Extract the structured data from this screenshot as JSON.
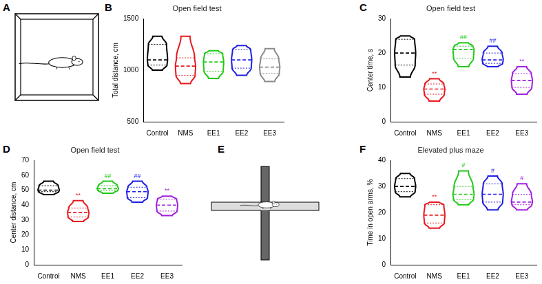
{
  "chart_data": [
    {
      "panel": "B",
      "type": "violin",
      "title": "Open field test",
      "y_label": "Total distance, cm",
      "categories": [
        "Control",
        "NMS",
        "EE1",
        "EE2",
        "EE3"
      ],
      "colors": [
        "#000000",
        "#e8191f",
        "#22c91a",
        "#1f1fe6",
        "#8a8a8a"
      ],
      "stats": {
        "min": [
          1000,
          870,
          920,
          950,
          890
        ],
        "q1": [
          1050,
          950,
          990,
          1020,
          970
        ],
        "median": [
          1100,
          1040,
          1080,
          1100,
          1030
        ],
        "q3": [
          1250,
          1120,
          1160,
          1200,
          1110
        ],
        "max": [
          1330,
          1330,
          1190,
          1240,
          1210
        ]
      },
      "annotations": [
        null,
        null,
        null,
        null,
        null
      ],
      "ylim": [
        500,
        1500
      ],
      "yticks": [
        500,
        1000,
        1500
      ],
      "grid": false
    },
    {
      "panel": "C",
      "type": "violin",
      "title": "Open field test",
      "y_label": "Center time, s",
      "categories": [
        "Control",
        "NMS",
        "EE1",
        "EE2",
        "EE3"
      ],
      "colors": [
        "#000000",
        "#e8191f",
        "#22c91a",
        "#1f1fe6",
        "#a020e0"
      ],
      "stats": {
        "min": [
          13,
          6,
          16,
          16,
          8
        ],
        "q1": [
          16.5,
          8,
          18.5,
          17,
          10
        ],
        "median": [
          20,
          9.5,
          21,
          18,
          12
        ],
        "q3": [
          24,
          11,
          22,
          20,
          14
        ],
        "max": [
          25,
          12.5,
          23,
          22,
          16
        ]
      },
      "annotations": [
        null,
        "**",
        "##",
        "##",
        "**"
      ],
      "ylim": [
        0,
        30
      ],
      "yticks": [
        0,
        10,
        20,
        30
      ],
      "grid": false
    },
    {
      "panel": "D",
      "type": "violin",
      "title": "Open field test",
      "y_label": "Center distance, cm",
      "categories": [
        "Control",
        "NMS",
        "EE1",
        "EE2",
        "EE3"
      ],
      "colors": [
        "#000000",
        "#e8191f",
        "#22c91a",
        "#1f1fe6",
        "#a020e0"
      ],
      "stats": {
        "min": [
          47,
          29,
          48,
          42,
          33
        ],
        "q1": [
          49,
          32,
          50,
          45,
          36
        ],
        "median": [
          50,
          35,
          51,
          49,
          40
        ],
        "q3": [
          53,
          38,
          53,
          52,
          44
        ],
        "max": [
          56,
          43,
          56,
          56,
          46
        ]
      },
      "annotations": [
        null,
        "**",
        "##",
        "##",
        "**"
      ],
      "ylim": [
        0,
        70
      ],
      "yticks": [
        0,
        10,
        20,
        30,
        40,
        50,
        60,
        70
      ],
      "grid": false
    },
    {
      "panel": "F",
      "type": "violin",
      "title": "Elevated plus maze",
      "y_label": "Time in open arms, %",
      "categories": [
        "Control",
        "NMS",
        "EE1",
        "EE2",
        "EE3"
      ],
      "colors": [
        "#000000",
        "#e8191f",
        "#22c91a",
        "#1f1fe6",
        "#a020e0"
      ],
      "stats": {
        "min": [
          26,
          14,
          23,
          21,
          21
        ],
        "q1": [
          28,
          16,
          25,
          24,
          23
        ],
        "median": [
          30,
          19,
          27,
          27,
          24
        ],
        "q3": [
          33,
          23,
          30,
          31,
          27
        ],
        "max": [
          35,
          24,
          36,
          34,
          31
        ]
      },
      "annotations": [
        null,
        "**",
        "#",
        "#",
        "#"
      ],
      "ylim": [
        0,
        40
      ],
      "yticks": [
        0,
        10,
        20,
        30,
        40
      ],
      "grid": false
    }
  ],
  "diagrams": [
    {
      "panel": "A"
    },
    {
      "panel": "E"
    }
  ]
}
